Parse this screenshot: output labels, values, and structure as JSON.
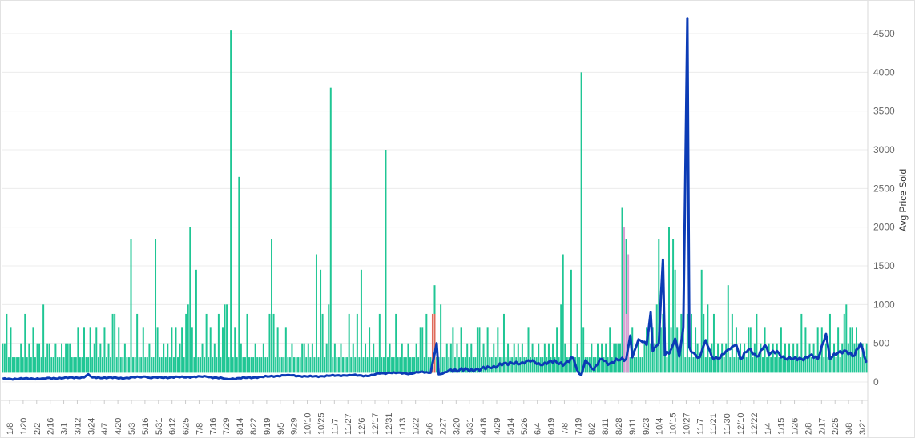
{
  "chart_data": {
    "type": "bar",
    "title": "",
    "xlabel": "",
    "ylabel": "Avg Price Sold",
    "ylim": [
      -250,
      4850
    ],
    "yticks": [
      0,
      500,
      1000,
      1500,
      2000,
      2500,
      3000,
      3500,
      4000,
      4500
    ],
    "grid": true,
    "colors": {
      "bars": "#1fc694",
      "line": "#0b3bb5",
      "bar_highlight_red": "#e06b5b",
      "bar_highlight_pink": "#d9a0d2",
      "grid": "#ececec",
      "axis": "#d8d8d8"
    },
    "x_tick_labels": [
      "1/8",
      "1/20",
      "2/2",
      "2/16",
      "3/1",
      "3/12",
      "3/24",
      "4/7",
      "4/20",
      "5/3",
      "5/16",
      "5/31",
      "6/12",
      "6/25",
      "7/8",
      "7/16",
      "7/29",
      "8/14",
      "8/22",
      "9/19",
      "9/5",
      "9/29",
      "10/10",
      "10/25",
      "11/7",
      "11/27",
      "12/6",
      "12/17",
      "12/31",
      "1/13",
      "1/22",
      "2/6",
      "2/27",
      "3/20",
      "3/31",
      "4/18",
      "4/29",
      "5/14",
      "5/26",
      "6/4",
      "6/19",
      "7/8",
      "7/19",
      "8/2",
      "8/11",
      "8/28",
      "9/11",
      "9/23",
      "10/4",
      "10/15",
      "10/27",
      "11/7",
      "11/21",
      "11/30",
      "12/10",
      "12/22",
      "1/4",
      "1/15",
      "1/26",
      "2/8",
      "2/17",
      "2/25",
      "3/8",
      "3/21"
    ],
    "n_points": 425,
    "bar_baseline": 120,
    "bar_default": 320,
    "bar_spikes": [
      [
        0,
        500
      ],
      [
        1,
        500
      ],
      [
        2,
        880
      ],
      [
        4,
        700
      ],
      [
        9,
        500
      ],
      [
        11,
        880
      ],
      [
        13,
        500
      ],
      [
        15,
        700
      ],
      [
        17,
        500
      ],
      [
        18,
        500
      ],
      [
        20,
        1000
      ],
      [
        22,
        500
      ],
      [
        23,
        500
      ],
      [
        26,
        500
      ],
      [
        29,
        500
      ],
      [
        31,
        500
      ],
      [
        32,
        500
      ],
      [
        33,
        500
      ],
      [
        37,
        700
      ],
      [
        40,
        700
      ],
      [
        43,
        700
      ],
      [
        45,
        500
      ],
      [
        46,
        700
      ],
      [
        48,
        500
      ],
      [
        50,
        700
      ],
      [
        52,
        500
      ],
      [
        54,
        880
      ],
      [
        55,
        880
      ],
      [
        57,
        700
      ],
      [
        60,
        500
      ],
      [
        63,
        1850
      ],
      [
        66,
        880
      ],
      [
        69,
        700
      ],
      [
        72,
        500
      ],
      [
        75,
        1850
      ],
      [
        76,
        700
      ],
      [
        79,
        500
      ],
      [
        81,
        500
      ],
      [
        83,
        700
      ],
      [
        85,
        700
      ],
      [
        87,
        500
      ],
      [
        88,
        700
      ],
      [
        90,
        880
      ],
      [
        91,
        1000
      ],
      [
        92,
        2000
      ],
      [
        93,
        700
      ],
      [
        95,
        1450
      ],
      [
        98,
        500
      ],
      [
        100,
        880
      ],
      [
        102,
        700
      ],
      [
        104,
        500
      ],
      [
        106,
        880
      ],
      [
        108,
        700
      ],
      [
        109,
        1000
      ],
      [
        110,
        1000
      ],
      [
        112,
        4540
      ],
      [
        114,
        700
      ],
      [
        116,
        2650
      ],
      [
        117,
        500
      ],
      [
        120,
        880
      ],
      [
        124,
        500
      ],
      [
        128,
        500
      ],
      [
        131,
        880
      ],
      [
        132,
        1850
      ],
      [
        133,
        880
      ],
      [
        135,
        700
      ],
      [
        139,
        700
      ],
      [
        142,
        500
      ],
      [
        147,
        500
      ],
      [
        148,
        500
      ],
      [
        150,
        500
      ],
      [
        152,
        500
      ],
      [
        154,
        1650
      ],
      [
        156,
        1450
      ],
      [
        157,
        880
      ],
      [
        159,
        500
      ],
      [
        160,
        1000
      ],
      [
        161,
        3800
      ],
      [
        163,
        500
      ],
      [
        166,
        500
      ],
      [
        170,
        880
      ],
      [
        172,
        500
      ],
      [
        174,
        880
      ],
      [
        176,
        1450
      ],
      [
        178,
        500
      ],
      [
        180,
        700
      ],
      [
        182,
        500
      ],
      [
        185,
        880
      ],
      [
        188,
        3000
      ],
      [
        190,
        500
      ],
      [
        193,
        880
      ],
      [
        196,
        500
      ],
      [
        199,
        500
      ],
      [
        203,
        500
      ],
      [
        205,
        700
      ],
      [
        206,
        700
      ],
      [
        208,
        880
      ],
      [
        212,
        1250
      ],
      [
        215,
        1000
      ],
      [
        218,
        500
      ],
      [
        220,
        500
      ],
      [
        221,
        700
      ],
      [
        223,
        500
      ],
      [
        225,
        700
      ],
      [
        228,
        500
      ],
      [
        230,
        500
      ],
      [
        233,
        700
      ],
      [
        234,
        700
      ],
      [
        236,
        500
      ],
      [
        238,
        700
      ],
      [
        241,
        500
      ],
      [
        243,
        700
      ],
      [
        246,
        880
      ],
      [
        248,
        500
      ],
      [
        251,
        500
      ],
      [
        253,
        500
      ],
      [
        255,
        500
      ],
      [
        258,
        700
      ],
      [
        260,
        500
      ],
      [
        263,
        500
      ],
      [
        266,
        500
      ],
      [
        268,
        500
      ],
      [
        270,
        500
      ],
      [
        272,
        700
      ],
      [
        274,
        1000
      ],
      [
        275,
        1650
      ],
      [
        276,
        500
      ],
      [
        279,
        1450
      ],
      [
        282,
        500
      ],
      [
        284,
        4000
      ],
      [
        285,
        700
      ],
      [
        289,
        500
      ],
      [
        292,
        500
      ],
      [
        294,
        500
      ],
      [
        296,
        500
      ],
      [
        298,
        700
      ],
      [
        300,
        500
      ],
      [
        301,
        500
      ],
      [
        302,
        500
      ],
      [
        303,
        500
      ],
      [
        304,
        2250
      ],
      [
        305,
        500
      ],
      [
        306,
        1850
      ],
      [
        309,
        700
      ],
      [
        312,
        500
      ],
      [
        315,
        500
      ],
      [
        316,
        700
      ],
      [
        317,
        700
      ],
      [
        318,
        500
      ],
      [
        319,
        700
      ],
      [
        320,
        500
      ],
      [
        321,
        1000
      ],
      [
        322,
        1850
      ],
      [
        323,
        700
      ],
      [
        324,
        880
      ],
      [
        325,
        700
      ],
      [
        327,
        2000
      ],
      [
        328,
        700
      ],
      [
        329,
        1850
      ],
      [
        330,
        1450
      ],
      [
        331,
        700
      ],
      [
        333,
        880
      ],
      [
        334,
        700
      ],
      [
        336,
        880
      ],
      [
        338,
        880
      ],
      [
        340,
        700
      ],
      [
        341,
        500
      ],
      [
        343,
        1450
      ],
      [
        344,
        880
      ],
      [
        346,
        1000
      ],
      [
        348,
        500
      ],
      [
        349,
        880
      ],
      [
        351,
        500
      ],
      [
        353,
        500
      ],
      [
        355,
        500
      ],
      [
        356,
        1250
      ],
      [
        358,
        880
      ],
      [
        360,
        700
      ],
      [
        362,
        500
      ],
      [
        364,
        500
      ],
      [
        366,
        700
      ],
      [
        367,
        700
      ],
      [
        369,
        500
      ],
      [
        370,
        880
      ],
      [
        372,
        500
      ],
      [
        374,
        700
      ],
      [
        376,
        500
      ],
      [
        378,
        500
      ],
      [
        380,
        500
      ],
      [
        382,
        700
      ],
      [
        384,
        500
      ],
      [
        386,
        500
      ],
      [
        388,
        500
      ],
      [
        390,
        500
      ],
      [
        392,
        880
      ],
      [
        394,
        700
      ],
      [
        396,
        500
      ],
      [
        398,
        500
      ],
      [
        400,
        700
      ],
      [
        402,
        700
      ],
      [
        404,
        500
      ],
      [
        406,
        880
      ],
      [
        408,
        500
      ],
      [
        410,
        700
      ],
      [
        412,
        500
      ],
      [
        413,
        880
      ],
      [
        414,
        1000
      ],
      [
        415,
        500
      ],
      [
        416,
        700
      ],
      [
        417,
        700
      ],
      [
        418,
        500
      ],
      [
        419,
        700
      ],
      [
        420,
        500
      ],
      [
        422,
        500
      ],
      [
        424,
        500
      ]
    ],
    "bar_red": [
      [
        211,
        880
      ],
      [
        212,
        880
      ]
    ],
    "bar_pink": [
      [
        305,
        2000
      ],
      [
        306,
        880
      ],
      [
        307,
        1650
      ]
    ],
    "line_anchors": [
      [
        0,
        40
      ],
      [
        20,
        45
      ],
      [
        40,
        60
      ],
      [
        42,
        100
      ],
      [
        44,
        60
      ],
      [
        60,
        50
      ],
      [
        70,
        70
      ],
      [
        72,
        55
      ],
      [
        100,
        70
      ],
      [
        110,
        40
      ],
      [
        130,
        70
      ],
      [
        140,
        90
      ],
      [
        150,
        70
      ],
      [
        160,
        80
      ],
      [
        170,
        90
      ],
      [
        180,
        80
      ],
      [
        185,
        110
      ],
      [
        190,
        120
      ],
      [
        200,
        110
      ],
      [
        205,
        130
      ],
      [
        210,
        120
      ],
      [
        213,
        500
      ],
      [
        214,
        100
      ],
      [
        216,
        110
      ],
      [
        220,
        160
      ],
      [
        224,
        150
      ],
      [
        232,
        160
      ],
      [
        240,
        180
      ],
      [
        244,
        240
      ],
      [
        248,
        220
      ],
      [
        252,
        260
      ],
      [
        256,
        240
      ],
      [
        260,
        280
      ],
      [
        264,
        220
      ],
      [
        268,
        260
      ],
      [
        272,
        250
      ],
      [
        276,
        240
      ],
      [
        280,
        310
      ],
      [
        282,
        150
      ],
      [
        284,
        90
      ],
      [
        286,
        280
      ],
      [
        290,
        160
      ],
      [
        294,
        300
      ],
      [
        298,
        240
      ],
      [
        302,
        280
      ],
      [
        306,
        300
      ],
      [
        308,
        600
      ],
      [
        309,
        320
      ],
      [
        312,
        550
      ],
      [
        316,
        480
      ],
      [
        318,
        900
      ],
      [
        319,
        400
      ],
      [
        322,
        500
      ],
      [
        324,
        1580
      ],
      [
        325,
        350
      ],
      [
        328,
        420
      ],
      [
        330,
        560
      ],
      [
        332,
        330
      ],
      [
        334,
        700
      ],
      [
        336,
        4700
      ],
      [
        337,
        450
      ],
      [
        339,
        380
      ],
      [
        342,
        320
      ],
      [
        345,
        540
      ],
      [
        348,
        330
      ],
      [
        352,
        310
      ],
      [
        356,
        420
      ],
      [
        360,
        480
      ],
      [
        362,
        300
      ],
      [
        366,
        420
      ],
      [
        370,
        330
      ],
      [
        374,
        480
      ],
      [
        376,
        350
      ],
      [
        380,
        400
      ],
      [
        384,
        300
      ],
      [
        388,
        300
      ],
      [
        392,
        300
      ],
      [
        396,
        340
      ],
      [
        400,
        300
      ],
      [
        404,
        620
      ],
      [
        406,
        300
      ],
      [
        410,
        380
      ],
      [
        414,
        400
      ],
      [
        418,
        340
      ],
      [
        421,
        500
      ],
      [
        424,
        250
      ]
    ]
  }
}
